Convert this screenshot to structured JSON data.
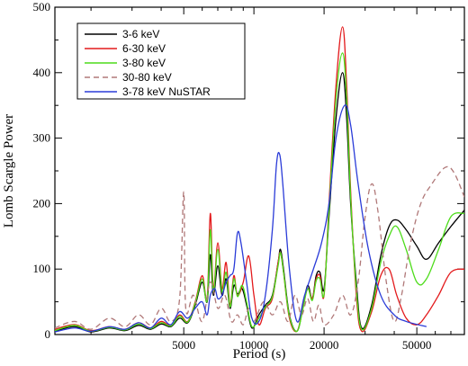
{
  "chart_data": {
    "type": "line",
    "title": "",
    "xlabel": "Period (s)",
    "ylabel": "Lomb Scargle Power",
    "x_scale": "log",
    "xlim": [
      1400,
      80000
    ],
    "ylim": [
      0,
      500
    ],
    "x_tick_labels": [
      "5000",
      "10000",
      "20000",
      "50000"
    ],
    "x_ticks": [
      5000,
      10000,
      20000,
      50000
    ],
    "y_ticks": [
      0,
      100,
      200,
      300,
      400,
      500
    ],
    "grid": false,
    "legend_position": "top-left",
    "series": [
      {
        "name": "3-6 keV",
        "color": "#000000",
        "dash": "solid",
        "points": [
          [
            1400,
            5
          ],
          [
            1700,
            12
          ],
          [
            2000,
            4
          ],
          [
            2400,
            10
          ],
          [
            2800,
            6
          ],
          [
            3200,
            14
          ],
          [
            3600,
            8
          ],
          [
            4000,
            16
          ],
          [
            4400,
            12
          ],
          [
            4800,
            25
          ],
          [
            5200,
            18
          ],
          [
            5600,
            45
          ],
          [
            6000,
            80
          ],
          [
            6300,
            50
          ],
          [
            6500,
            122
          ],
          [
            6700,
            60
          ],
          [
            7000,
            105
          ],
          [
            7300,
            60
          ],
          [
            7600,
            85
          ],
          [
            7900,
            40
          ],
          [
            8200,
            75
          ],
          [
            8500,
            62
          ],
          [
            8900,
            70
          ],
          [
            9300,
            45
          ],
          [
            9800,
            10
          ],
          [
            10500,
            30
          ],
          [
            11200,
            45
          ],
          [
            12000,
            60
          ],
          [
            12700,
            110
          ],
          [
            13000,
            130
          ],
          [
            13400,
            100
          ],
          [
            14200,
            30
          ],
          [
            15300,
            5
          ],
          [
            16200,
            40
          ],
          [
            17000,
            75
          ],
          [
            17800,
            55
          ],
          [
            18500,
            90
          ],
          [
            19200,
            95
          ],
          [
            20000,
            70
          ],
          [
            21000,
            180
          ],
          [
            22500,
            330
          ],
          [
            24000,
            400
          ],
          [
            25000,
            330
          ],
          [
            26000,
            200
          ],
          [
            27500,
            80
          ],
          [
            29000,
            10
          ],
          [
            32000,
            45
          ],
          [
            35000,
            120
          ],
          [
            38000,
            165
          ],
          [
            41000,
            175
          ],
          [
            45000,
            160
          ],
          [
            50000,
            135
          ],
          [
            55000,
            115
          ],
          [
            62000,
            140
          ],
          [
            70000,
            165
          ],
          [
            80000,
            190
          ]
        ]
      },
      {
        "name": "6-30 keV",
        "color": "#e31a1c",
        "dash": "solid",
        "points": [
          [
            1400,
            8
          ],
          [
            1700,
            15
          ],
          [
            2000,
            6
          ],
          [
            2400,
            12
          ],
          [
            2800,
            8
          ],
          [
            3200,
            18
          ],
          [
            3600,
            10
          ],
          [
            4000,
            20
          ],
          [
            4400,
            14
          ],
          [
            4800,
            30
          ],
          [
            5200,
            20
          ],
          [
            5600,
            50
          ],
          [
            6000,
            90
          ],
          [
            6300,
            55
          ],
          [
            6500,
            185
          ],
          [
            6700,
            70
          ],
          [
            7000,
            140
          ],
          [
            7300,
            70
          ],
          [
            7600,
            110
          ],
          [
            7900,
            45
          ],
          [
            8200,
            90
          ],
          [
            8500,
            60
          ],
          [
            9000,
            80
          ],
          [
            9500,
            120
          ],
          [
            10000,
            60
          ],
          [
            10500,
            15
          ],
          [
            11200,
            40
          ],
          [
            12000,
            55
          ],
          [
            12700,
            110
          ],
          [
            13000,
            125
          ],
          [
            13400,
            95
          ],
          [
            14200,
            25
          ],
          [
            15300,
            5
          ],
          [
            16200,
            40
          ],
          [
            17000,
            70
          ],
          [
            17800,
            55
          ],
          [
            18500,
            85
          ],
          [
            19200,
            90
          ],
          [
            20000,
            60
          ],
          [
            21000,
            200
          ],
          [
            22500,
            380
          ],
          [
            24000,
            470
          ],
          [
            25000,
            380
          ],
          [
            26000,
            220
          ],
          [
            27500,
            60
          ],
          [
            29000,
            5
          ],
          [
            32000,
            35
          ],
          [
            35000,
            90
          ],
          [
            38000,
            100
          ],
          [
            41000,
            60
          ],
          [
            45000,
            25
          ],
          [
            50000,
            15
          ],
          [
            55000,
            30
          ],
          [
            62000,
            60
          ],
          [
            70000,
            95
          ],
          [
            80000,
            100
          ]
        ]
      },
      {
        "name": "3-80 keV",
        "color": "#4ddc1a",
        "dash": "solid",
        "points": [
          [
            1400,
            6
          ],
          [
            1700,
            14
          ],
          [
            2000,
            5
          ],
          [
            2400,
            11
          ],
          [
            2800,
            7
          ],
          [
            3200,
            16
          ],
          [
            3600,
            9
          ],
          [
            4000,
            18
          ],
          [
            4400,
            13
          ],
          [
            4800,
            28
          ],
          [
            5200,
            19
          ],
          [
            5600,
            48
          ],
          [
            6000,
            85
          ],
          [
            6300,
            52
          ],
          [
            6500,
            160
          ],
          [
            6700,
            65
          ],
          [
            7000,
            130
          ],
          [
            7300,
            65
          ],
          [
            7600,
            95
          ],
          [
            7900,
            42
          ],
          [
            8200,
            85
          ],
          [
            8500,
            58
          ],
          [
            8900,
            75
          ],
          [
            9300,
            50
          ],
          [
            9800,
            12
          ],
          [
            10500,
            25
          ],
          [
            11200,
            42
          ],
          [
            12000,
            58
          ],
          [
            12700,
            105
          ],
          [
            13000,
            125
          ],
          [
            13400,
            95
          ],
          [
            14200,
            28
          ],
          [
            15300,
            5
          ],
          [
            16200,
            38
          ],
          [
            17000,
            70
          ],
          [
            17800,
            52
          ],
          [
            18500,
            82
          ],
          [
            19200,
            85
          ],
          [
            20000,
            62
          ],
          [
            21000,
            190
          ],
          [
            22500,
            360
          ],
          [
            24000,
            430
          ],
          [
            25000,
            360
          ],
          [
            26000,
            210
          ],
          [
            27500,
            70
          ],
          [
            29000,
            8
          ],
          [
            32000,
            40
          ],
          [
            35000,
            110
          ],
          [
            38000,
            150
          ],
          [
            41000,
            165
          ],
          [
            45000,
            130
          ],
          [
            50000,
            80
          ],
          [
            55000,
            85
          ],
          [
            62000,
            130
          ],
          [
            70000,
            180
          ],
          [
            80000,
            185
          ]
        ]
      },
      {
        "name": "30-80 keV",
        "color": "#b07878",
        "dash": "dashed",
        "points": [
          [
            1400,
            10
          ],
          [
            1700,
            20
          ],
          [
            2000,
            8
          ],
          [
            2400,
            25
          ],
          [
            2800,
            12
          ],
          [
            3200,
            30
          ],
          [
            3600,
            15
          ],
          [
            4000,
            40
          ],
          [
            4400,
            20
          ],
          [
            4800,
            55
          ],
          [
            5000,
            218
          ],
          [
            5100,
            40
          ],
          [
            5500,
            60
          ],
          [
            6000,
            20
          ],
          [
            6500,
            80
          ],
          [
            7000,
            40
          ],
          [
            7500,
            60
          ],
          [
            8000,
            20
          ],
          [
            8500,
            30
          ],
          [
            9000,
            15
          ],
          [
            9500,
            40
          ],
          [
            10000,
            20
          ],
          [
            11000,
            50
          ],
          [
            12000,
            30
          ],
          [
            13000,
            50
          ],
          [
            14000,
            20
          ],
          [
            15000,
            60
          ],
          [
            16000,
            30
          ],
          [
            17000,
            55
          ],
          [
            18000,
            20
          ],
          [
            19000,
            45
          ],
          [
            20000,
            15
          ],
          [
            22000,
            30
          ],
          [
            24000,
            60
          ],
          [
            26000,
            30
          ],
          [
            28000,
            80
          ],
          [
            30000,
            180
          ],
          [
            32000,
            230
          ],
          [
            34000,
            190
          ],
          [
            37000,
            80
          ],
          [
            40000,
            20
          ],
          [
            43000,
            60
          ],
          [
            47000,
            140
          ],
          [
            52000,
            200
          ],
          [
            58000,
            230
          ],
          [
            66000,
            255
          ],
          [
            72000,
            248
          ],
          [
            80000,
            210
          ]
        ]
      },
      {
        "name": "3-78 keV NuSTAR",
        "color": "#2a3bd8",
        "dash": "solid",
        "points": [
          [
            1400,
            4
          ],
          [
            1700,
            10
          ],
          [
            2000,
            5
          ],
          [
            2400,
            12
          ],
          [
            2800,
            8
          ],
          [
            3200,
            18
          ],
          [
            3600,
            10
          ],
          [
            4000,
            25
          ],
          [
            4400,
            15
          ],
          [
            4800,
            35
          ],
          [
            5200,
            25
          ],
          [
            5600,
            40
          ],
          [
            6000,
            50
          ],
          [
            6300,
            30
          ],
          [
            6500,
            60
          ],
          [
            6800,
            70
          ],
          [
            7000,
            55
          ],
          [
            7300,
            60
          ],
          [
            7600,
            80
          ],
          [
            7900,
            90
          ],
          [
            8200,
            100
          ],
          [
            8500,
            155
          ],
          [
            8800,
            140
          ],
          [
            9300,
            80
          ],
          [
            9800,
            25
          ],
          [
            10500,
            20
          ],
          [
            11200,
            60
          ],
          [
            12000,
            160
          ],
          [
            12500,
            260
          ],
          [
            12900,
            275
          ],
          [
            13300,
            230
          ],
          [
            14200,
            100
          ],
          [
            15300,
            20
          ],
          [
            16500,
            60
          ],
          [
            18000,
            100
          ],
          [
            19500,
            140
          ],
          [
            21000,
            200
          ],
          [
            22500,
            300
          ],
          [
            24500,
            350
          ],
          [
            26000,
            320
          ],
          [
            28000,
            230
          ],
          [
            31000,
            130
          ],
          [
            35000,
            60
          ],
          [
            40000,
            30
          ],
          [
            45000,
            20
          ],
          [
            55000,
            12
          ]
        ]
      }
    ]
  }
}
